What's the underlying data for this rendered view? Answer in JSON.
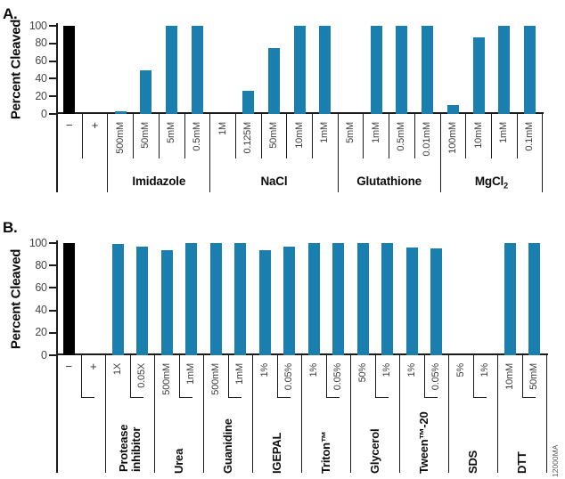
{
  "figure_id": "12000MA",
  "colors": {
    "bar": "#1A7EAE",
    "control_bar": "#000000",
    "axis": "#1b1b1b"
  },
  "chart_data": [
    {
      "type": "bar",
      "panel": "A.",
      "ylabel": "Percent Cleaved",
      "ylim": [
        0,
        100
      ],
      "yticks": [
        100,
        80,
        60,
        40,
        20,
        0
      ],
      "legend": "none",
      "grid": false,
      "groups": [
        {
          "name": "",
          "items": [
            {
              "label": "−",
              "value": 100,
              "black": true
            },
            {
              "label": "+",
              "value": 0
            }
          ]
        },
        {
          "name": "Imidazole",
          "items": [
            {
              "label": "500mM",
              "value": 3
            },
            {
              "label": "50mM",
              "value": 50
            },
            {
              "label": "5mM",
              "value": 100
            },
            {
              "label": "0.5mM",
              "value": 100
            }
          ]
        },
        {
          "name": "NaCl",
          "items": [
            {
              "label": "1M",
              "value": 0
            },
            {
              "label": "0.125M",
              "value": 26
            },
            {
              "label": "50mM",
              "value": 75
            },
            {
              "label": "10mM",
              "value": 100
            },
            {
              "label": "1mM",
              "value": 100
            }
          ]
        },
        {
          "name": "Glutathione",
          "items": [
            {
              "label": "5mM",
              "value": 0
            },
            {
              "label": "1mM",
              "value": 100
            },
            {
              "label": "0.5mM",
              "value": 100
            },
            {
              "label": "0.01mM",
              "value": 100
            }
          ]
        },
        {
          "name": "MgCl",
          "name_sub": "2",
          "items": [
            {
              "label": "100mM",
              "value": 10
            },
            {
              "label": "10mM",
              "value": 87
            },
            {
              "label": "1mM",
              "value": 100
            },
            {
              "label": "0.1mM",
              "value": 100
            }
          ]
        }
      ]
    },
    {
      "type": "bar",
      "panel": "B.",
      "ylabel": "Percent Cleaved",
      "ylim": [
        0,
        100
      ],
      "yticks": [
        100,
        80,
        60,
        40,
        20,
        0
      ],
      "legend": "none",
      "grid": false,
      "groups": [
        {
          "name": "",
          "items": [
            {
              "label": "−",
              "value": 100,
              "black": true
            },
            {
              "label": "+",
              "value": 0
            }
          ]
        },
        {
          "name": "Protease inhibitor",
          "name_lines": [
            "Protease",
            "inhibitor"
          ],
          "items": [
            {
              "label": "1X",
              "value": 99
            },
            {
              "label": "0.05X",
              "value": 97
            }
          ]
        },
        {
          "name": "Urea",
          "items": [
            {
              "label": "500mM",
              "value": 94
            },
            {
              "label": "1mM",
              "value": 100
            }
          ]
        },
        {
          "name": "Guanidine",
          "items": [
            {
              "label": "500mM",
              "value": 100
            },
            {
              "label": "1mM",
              "value": 100
            }
          ]
        },
        {
          "name": "IGEPAL",
          "items": [
            {
              "label": "1%",
              "value": 94
            },
            {
              "label": "0.05%",
              "value": 97
            }
          ]
        },
        {
          "name": "Triton™",
          "items": [
            {
              "label": "1%",
              "value": 100
            },
            {
              "label": "0.05%",
              "value": 100
            }
          ]
        },
        {
          "name": "Glycerol",
          "items": [
            {
              "label": "50%",
              "value": 100
            },
            {
              "label": "1%",
              "value": 100
            }
          ]
        },
        {
          "name": "Tween™-20",
          "items": [
            {
              "label": "1%",
              "value": 96
            },
            {
              "label": "0.05%",
              "value": 95
            }
          ]
        },
        {
          "name": "SDS",
          "items": [
            {
              "label": "5%",
              "value": 0
            },
            {
              "label": "1%",
              "value": 0
            }
          ]
        },
        {
          "name": "DTT",
          "items": [
            {
              "label": "10mM",
              "value": 100
            },
            {
              "label": "50mM",
              "value": 100
            }
          ]
        }
      ]
    }
  ]
}
